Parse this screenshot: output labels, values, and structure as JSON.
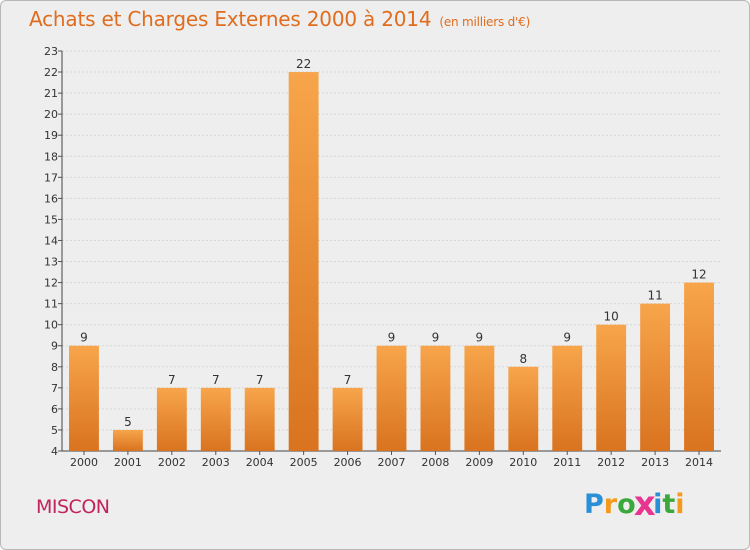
{
  "title": "Achats et Charges Externes 2000 à 2014",
  "subtitle": "(en milliers d'€)",
  "place": "MISCON",
  "logo": {
    "letters": [
      "P",
      "r",
      "o",
      "x",
      "i",
      "t",
      "i"
    ],
    "colors": [
      "#2a8fd6",
      "#f29a1c",
      "#3aa83a",
      "#e8358f",
      "#2a8fd6",
      "#3aa83a",
      "#f29a1c"
    ]
  },
  "colors": {
    "bar_light": "#f7a54b",
    "bar_dark": "#d9731f",
    "accent": "#e06c1e",
    "grid": "#d6d6d6"
  },
  "chart_data": {
    "type": "bar",
    "categories": [
      "2000",
      "2001",
      "2002",
      "2003",
      "2004",
      "2005",
      "2006",
      "2007",
      "2008",
      "2009",
      "2010",
      "2011",
      "2012",
      "2013",
      "2014"
    ],
    "values": [
      9,
      5,
      7,
      7,
      7,
      22,
      7,
      9,
      9,
      9,
      8,
      9,
      10,
      11,
      12
    ],
    "ylim": [
      4,
      23
    ],
    "yticks": [
      4,
      5,
      6,
      7,
      8,
      9,
      10,
      11,
      12,
      13,
      14,
      15,
      16,
      17,
      18,
      19,
      20,
      21,
      22,
      23
    ],
    "grid": true
  }
}
